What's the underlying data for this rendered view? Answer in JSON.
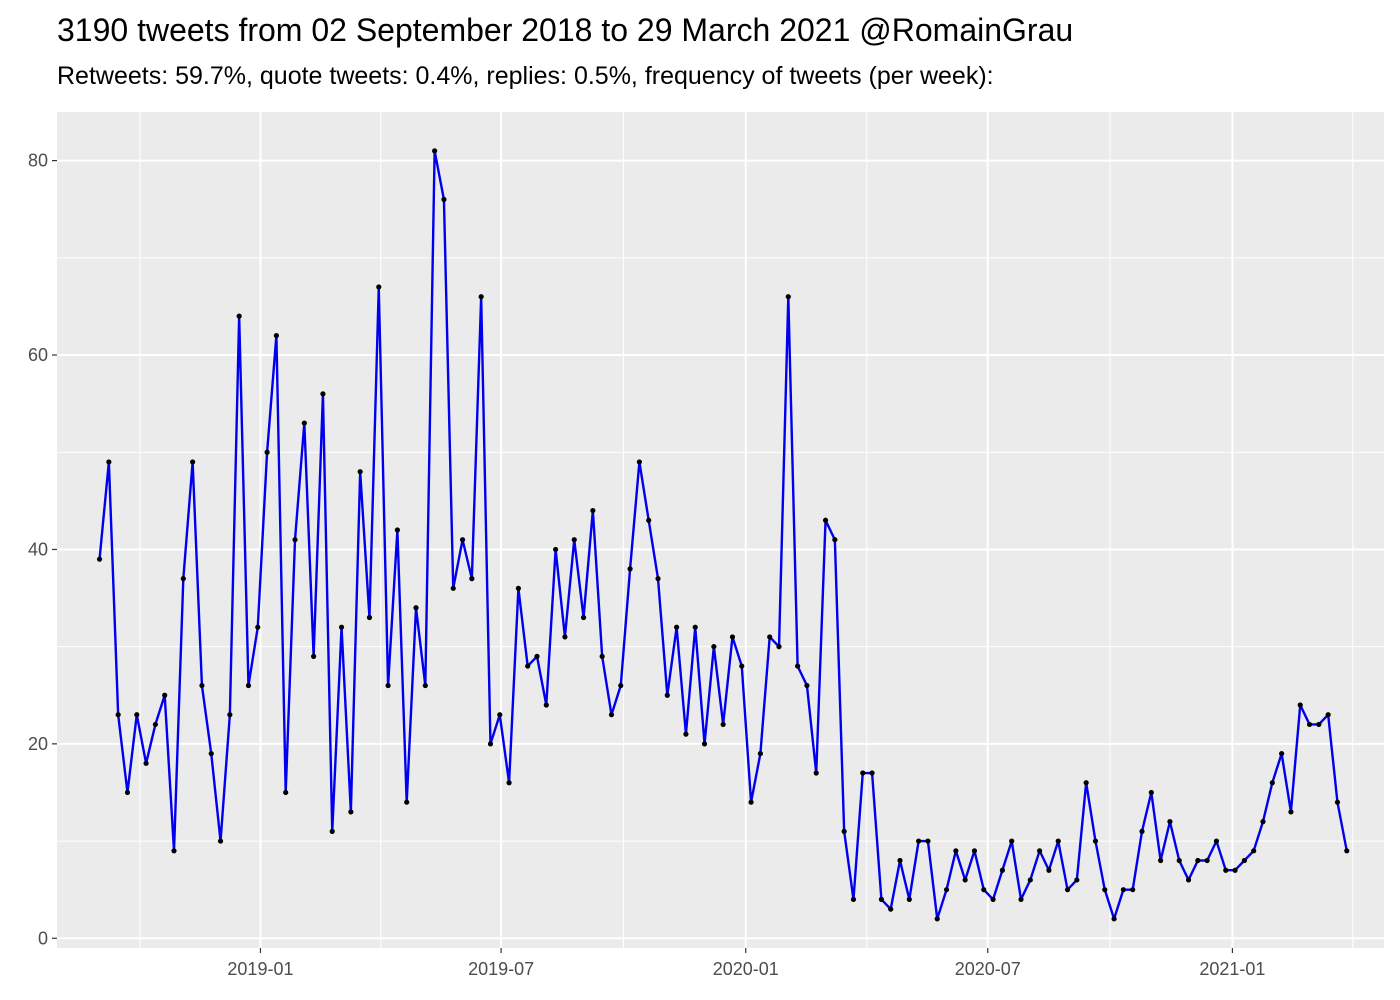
{
  "title": "3190 tweets from 02 September 2018 to 29 March 2021 @RomainGrau",
  "subtitle": "Retweets: 59.7%, quote tweets: 0.4%, replies: 0.5%, frequency of tweets (per week):",
  "chart_data": {
    "type": "line",
    "title": "3190 tweets from 02 September 2018 to 29 March 2021 @RomainGrau",
    "subtitle": "Retweets: 59.7%, quote tweets: 0.4%, replies: 0.5%, frequency of tweets (per week):",
    "xlabel": "",
    "ylabel": "",
    "x_type": "date",
    "x_interval": "weekly",
    "x_start": "2018-09-02",
    "x_end": "2021-03-28",
    "xlim": [
      "2018-08-01",
      "2021-04-25"
    ],
    "ylim": [
      -1,
      85
    ],
    "x_ticks": [
      "2019-01",
      "2019-07",
      "2020-01",
      "2020-07",
      "2021-01"
    ],
    "y_ticks": [
      0,
      20,
      40,
      60,
      80
    ],
    "grid": true,
    "line_color": "#0000ee",
    "point_color": "#000000",
    "background_color": "#ebebeb",
    "series": [
      {
        "values": [
          39,
          49,
          23,
          15,
          23,
          18,
          22,
          25,
          9,
          37,
          49,
          26,
          19,
          10,
          23,
          64,
          26,
          32,
          50,
          62,
          15,
          41,
          53,
          29,
          56,
          11,
          32,
          13,
          48,
          33,
          67,
          26,
          42,
          14,
          34,
          26,
          81,
          76,
          36,
          41,
          37,
          66,
          20,
          23,
          16,
          36,
          28,
          29,
          24,
          40,
          31,
          41,
          33,
          44,
          29,
          23,
          26,
          38,
          49,
          43,
          37,
          25,
          32,
          21,
          32,
          20,
          30,
          22,
          31,
          28,
          14,
          19,
          31,
          30,
          66,
          28,
          26,
          17,
          43,
          41,
          11,
          4,
          17,
          17,
          4,
          3,
          8,
          4,
          10,
          10,
          2,
          5,
          9,
          6,
          9,
          5,
          4,
          7,
          10,
          4,
          6,
          9,
          7,
          10,
          5,
          6,
          16,
          10,
          5,
          2,
          5,
          5,
          11,
          15,
          8,
          12,
          8,
          6,
          8,
          8,
          10,
          7,
          7,
          8,
          9,
          12,
          16,
          19,
          13,
          24,
          22,
          22,
          23,
          14,
          9
        ]
      }
    ]
  }
}
